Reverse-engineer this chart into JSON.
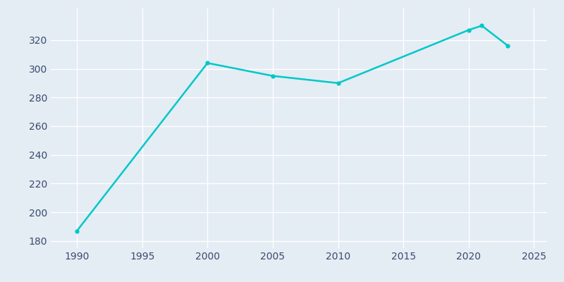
{
  "years": [
    1990,
    2000,
    2005,
    2010,
    2020,
    2021,
    2023
  ],
  "population": [
    187,
    304,
    295,
    290,
    327,
    330,
    316
  ],
  "line_color": "#00C8C8",
  "background_color": "#E4ECF4",
  "grid_color": "#FFFFFF",
  "text_color": "#3B4A6B",
  "xlim": [
    1988,
    2026
  ],
  "ylim": [
    175,
    342
  ],
  "xticks": [
    1990,
    1995,
    2000,
    2005,
    2010,
    2015,
    2020,
    2025
  ],
  "yticks": [
    180,
    200,
    220,
    240,
    260,
    280,
    300,
    320
  ]
}
